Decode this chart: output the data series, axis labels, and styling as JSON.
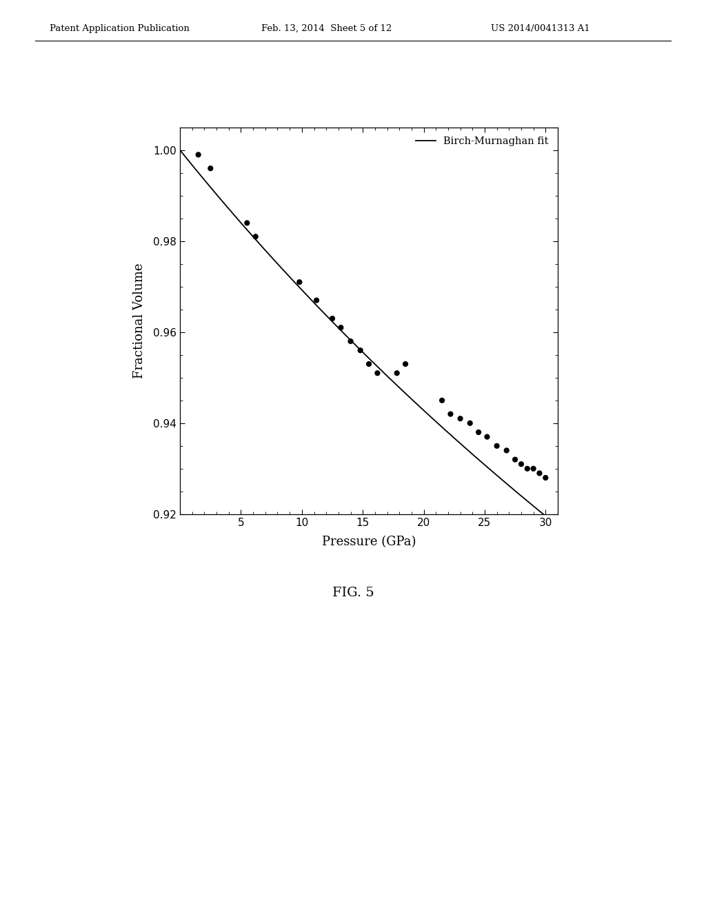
{
  "scatter_x": [
    1.5,
    2.5,
    5.5,
    6.2,
    9.8,
    11.2,
    12.5,
    13.2,
    14.0,
    14.8,
    15.5,
    16.2,
    17.8,
    18.5,
    21.5,
    22.2,
    23.0,
    23.8,
    24.5,
    25.2,
    26.0,
    26.8,
    27.5,
    28.0,
    28.5,
    29.0,
    29.5,
    30.0
  ],
  "scatter_y": [
    0.999,
    0.996,
    0.984,
    0.981,
    0.971,
    0.967,
    0.963,
    0.961,
    0.958,
    0.956,
    0.953,
    0.951,
    0.951,
    0.953,
    0.945,
    0.942,
    0.941,
    0.94,
    0.938,
    0.937,
    0.935,
    0.934,
    0.932,
    0.931,
    0.93,
    0.93,
    0.929,
    0.928
  ],
  "xlabel": "Pressure (GPa)",
  "ylabel": "Fractional Volume",
  "xlim": [
    0,
    31
  ],
  "ylim": [
    0.92,
    1.005
  ],
  "xticks": [
    5,
    10,
    15,
    20,
    25,
    30
  ],
  "yticks": [
    0.92,
    0.94,
    0.96,
    0.98,
    1.0
  ],
  "legend_label": "Birch-Murnaghan fit",
  "fig_label": "FIG. 5",
  "header_left": "Patent Application Publication",
  "header_center": "Feb. 13, 2014  Sheet 5 of 12",
  "header_right": "US 2014/0041313 A1",
  "dot_color": "#000000",
  "line_color": "#000000",
  "background_color": "#ffffff",
  "B0": 300.0,
  "B0p": 4.2
}
